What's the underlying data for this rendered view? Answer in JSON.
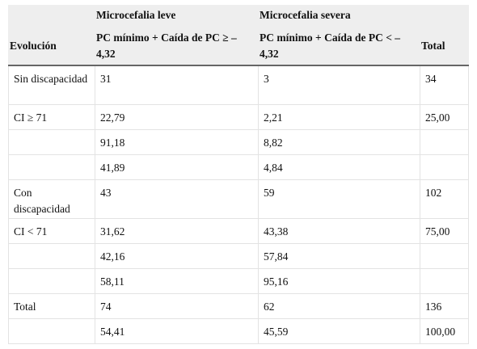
{
  "header": {
    "group_leve": "Microcefalia leve",
    "group_severa": "Microcefalia severa",
    "col_evolucion": "Evolución",
    "col_leve_criterion": "PC mínimo + Caída de PC ≥ –4,32",
    "col_severa_criterion": "PC mínimo + Caída de PC < –4,32",
    "col_total": "Total"
  },
  "rows": [
    {
      "evolucion": "Sin discapacidad",
      "leve": "31",
      "severa": "3",
      "total": "34"
    },
    {
      "evolucion": "CI ≥ 71",
      "leve": "22,79",
      "severa": "2,21",
      "total": "25,00"
    },
    {
      "evolucion": "",
      "leve": "91,18",
      "severa": "8,82",
      "total": ""
    },
    {
      "evolucion": "",
      "leve": "41,89",
      "severa": "4,84",
      "total": ""
    },
    {
      "evolucion": "Con discapacidad",
      "leve": "43",
      "severa": "59",
      "total": "102"
    },
    {
      "evolucion": "CI < 71",
      "leve": "31,62",
      "severa": "43,38",
      "total": "75,00"
    },
    {
      "evolucion": "",
      "leve": "42,16",
      "severa": "57,84",
      "total": ""
    },
    {
      "evolucion": "",
      "leve": "58,11",
      "severa": "95,16",
      "total": ""
    },
    {
      "evolucion": "Total",
      "leve": "74",
      "severa": "62",
      "total": "136"
    },
    {
      "evolucion": "",
      "leve": "54,41",
      "severa": "45,59",
      "total": "100,00"
    }
  ]
}
